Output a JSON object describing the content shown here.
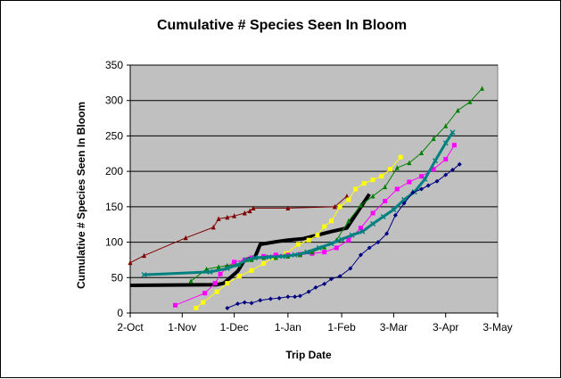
{
  "chart_data": {
    "type": "line",
    "title": "Cumulative # Species Seen In Bloom",
    "xlabel": "Trip Date",
    "ylabel": "Cumulative # Species Seen In Bloom",
    "ylim": [
      0,
      350
    ],
    "yticks": [
      0,
      50,
      100,
      150,
      200,
      250,
      300,
      350
    ],
    "xlim": [
      0,
      212
    ],
    "xticks": [
      {
        "value": 0,
        "label": "2-Oct"
      },
      {
        "value": 30,
        "label": "1-Nov"
      },
      {
        "value": 60,
        "label": "1-Dec"
      },
      {
        "value": 91,
        "label": "1-Jan"
      },
      {
        "value": 122,
        "label": "1-Feb"
      },
      {
        "value": 152,
        "label": "3-Mar"
      },
      {
        "value": 182,
        "label": "3-Apr"
      },
      {
        "value": 212,
        "label": "3-May"
      }
    ],
    "grid": true,
    "legend": "none",
    "colors": {
      "plot_bg": "#c0c0c0",
      "gridline": "#000000",
      "frame": "#808080"
    },
    "series": [
      {
        "color": "#800000",
        "width": 1,
        "marker": "triangle",
        "x": [
          0,
          8,
          32,
          48,
          51,
          56,
          60,
          66,
          69,
          71,
          91,
          118,
          125
        ],
        "y": [
          71,
          81,
          106,
          121,
          133,
          135,
          137,
          141,
          144,
          148,
          148,
          150,
          165
        ]
      },
      {
        "color": "#000000",
        "width": 4,
        "marker": "none",
        "x": [
          0,
          50,
          54,
          62,
          66,
          72,
          75,
          85,
          91,
          100,
          116,
          125,
          138
        ],
        "y": [
          39,
          40,
          42,
          59,
          75,
          79,
          97,
          101,
          103,
          105,
          115,
          120,
          168
        ]
      },
      {
        "color": "#ffff00",
        "width": 1,
        "marker": "square",
        "x": [
          38,
          42,
          50,
          56,
          63,
          70,
          77,
          82,
          90,
          97,
          103,
          108,
          112,
          116,
          121,
          126,
          130,
          135,
          140,
          145,
          150,
          156
        ],
        "y": [
          7,
          15,
          30,
          42,
          52,
          60,
          70,
          78,
          84,
          97,
          103,
          110,
          122,
          130,
          150,
          160,
          175,
          183,
          188,
          193,
          203,
          220
        ]
      },
      {
        "color": "#ff00ff",
        "width": 1,
        "marker": "square",
        "x": [
          26,
          43,
          49,
          52,
          56,
          60,
          66,
          70,
          77,
          84,
          91,
          98,
          105,
          112,
          119,
          126,
          133,
          140,
          147,
          154,
          161,
          168,
          175,
          182,
          187
        ],
        "y": [
          11,
          28,
          42,
          55,
          65,
          72,
          75,
          78,
          80,
          82,
          82,
          83,
          84,
          86,
          92,
          103,
          120,
          141,
          158,
          175,
          185,
          193,
          203,
          217,
          237
        ]
      },
      {
        "color": "#008000",
        "width": 1,
        "marker": "triangle",
        "x": [
          35,
          44,
          51,
          56,
          63,
          70,
          77,
          84,
          91,
          98,
          105,
          112,
          119,
          126,
          133,
          140,
          147,
          154,
          161,
          168,
          175,
          182,
          189,
          196,
          203
        ],
        "y": [
          45,
          62,
          65,
          67,
          69,
          75,
          78,
          78,
          80,
          82,
          86,
          93,
          103,
          130,
          152,
          165,
          178,
          205,
          212,
          226,
          246,
          264,
          286,
          298,
          317
        ]
      },
      {
        "color": "#008080",
        "width": 3,
        "marker": "x",
        "x": [
          8,
          46,
          56,
          62,
          67,
          72,
          80,
          88,
          95,
          102,
          109,
          116,
          122,
          128,
          134,
          140,
          146,
          152,
          158,
          164,
          170,
          176,
          182,
          186
        ],
        "y": [
          54,
          58,
          63,
          68,
          75,
          78,
          79,
          80,
          82,
          86,
          92,
          98,
          104,
          110,
          115,
          126,
          136,
          146,
          160,
          171,
          189,
          215,
          240,
          255
        ]
      },
      {
        "color": "#000080",
        "width": 1,
        "marker": "diamond",
        "x": [
          56,
          62,
          66,
          70,
          75,
          81,
          86,
          91,
          95,
          98,
          103,
          107,
          112,
          116,
          121,
          127,
          133,
          138,
          143,
          148,
          153,
          158,
          163,
          168,
          172,
          177,
          182,
          186,
          190
        ],
        "y": [
          7,
          13,
          15,
          14,
          18,
          20,
          21,
          23,
          23,
          24,
          30,
          36,
          41,
          48,
          52,
          63,
          82,
          92,
          100,
          112,
          138,
          155,
          170,
          175,
          180,
          186,
          195,
          202,
          210
        ]
      }
    ]
  }
}
